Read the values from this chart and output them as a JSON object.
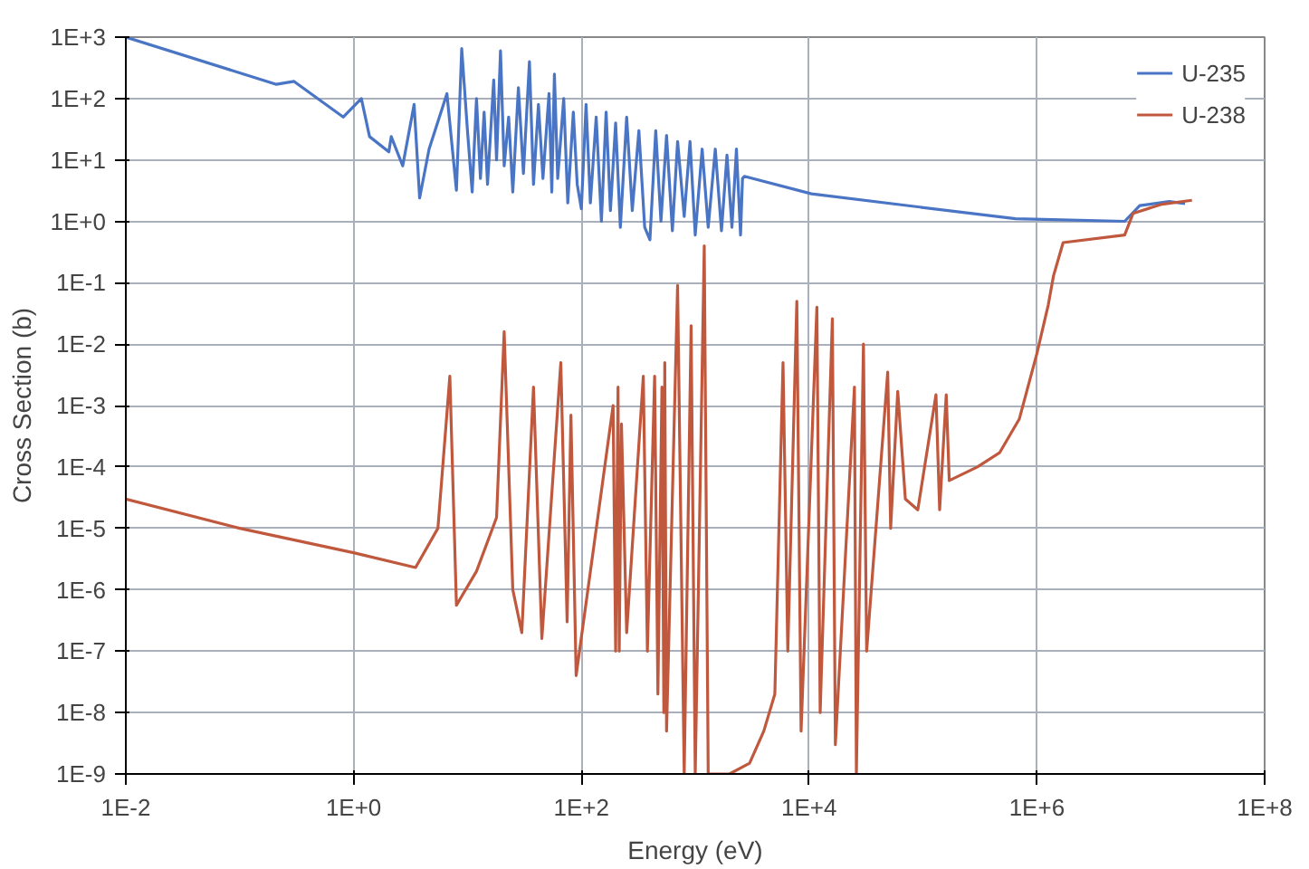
{
  "chart_data": {
    "type": "line",
    "xlabel": "Energy (eV)",
    "ylabel": "Cross Section (b)",
    "log": "xy",
    "grid": true,
    "legend": "top right",
    "xlim": [
      0.01,
      100000000
    ],
    "ylim": [
      1e-09,
      1000
    ],
    "xticks": [
      {
        "value": 0.01,
        "label": "1E-2"
      },
      {
        "value": 1,
        "label": "1E+0"
      },
      {
        "value": 100,
        "label": "1E+2"
      },
      {
        "value": 10000,
        "label": "1E+4"
      },
      {
        "value": 1000000,
        "label": "1E+6"
      },
      {
        "value": 100000000,
        "label": "1E+8"
      }
    ],
    "yticks": [
      {
        "value": 1000,
        "label": "1E+3"
      },
      {
        "value": 100,
        "label": "1E+2"
      },
      {
        "value": 10,
        "label": "1E+1"
      },
      {
        "value": 1,
        "label": "1E+0"
      },
      {
        "value": 0.1,
        "label": "1E-1"
      },
      {
        "value": 0.01,
        "label": "1E-2"
      },
      {
        "value": 0.001,
        "label": "1E-3"
      },
      {
        "value": 0.0001,
        "label": "1E-4"
      },
      {
        "value": 1e-05,
        "label": "1E-5"
      },
      {
        "value": 1e-06,
        "label": "1E-6"
      },
      {
        "value": 1e-07,
        "label": "1E-7"
      },
      {
        "value": 1e-08,
        "label": "1E-8"
      },
      {
        "value": 1e-09,
        "label": "1E-9"
      }
    ],
    "series": [
      {
        "name": "U-235",
        "color": "#4a74c4",
        "x": [
          0.01,
          0.21,
          0.3,
          0.81,
          1.17,
          1.38,
          2.04,
          2.14,
          2.7,
          3.4,
          3.8,
          4.6,
          6.6,
          8,
          8.9,
          10,
          11,
          12,
          13,
          14,
          15,
          17,
          18,
          19.5,
          21,
          23,
          25,
          28,
          31,
          35,
          38,
          42,
          46,
          52,
          55,
          58,
          62,
          70,
          76,
          85,
          92,
          100,
          110,
          120,
          135,
          150,
          165,
          180,
          200,
          220,
          250,
          280,
          320,
          360,
          400,
          450,
          500,
          560,
          630,
          700,
          800,
          900,
          1000,
          1150,
          1300,
          1500,
          1700,
          1900,
          2100,
          2300,
          2500,
          2600,
          2700,
          10500,
          650000,
          5900000,
          8000000,
          14500000,
          20000000
        ],
        "values": [
          1000,
          170,
          190,
          50,
          100,
          24,
          13.5,
          24,
          8,
          80,
          2.4,
          15,
          120,
          3.2,
          650,
          30,
          3,
          100,
          5,
          60,
          4,
          200,
          10,
          600,
          8,
          50,
          3,
          150,
          6,
          400,
          4,
          80,
          5,
          120,
          3,
          250,
          5,
          100,
          2,
          60,
          4,
          1.6,
          80,
          2,
          50,
          1,
          60,
          1.5,
          40,
          0.8,
          50,
          1.5,
          30,
          0.8,
          0.5,
          30,
          1,
          25,
          0.7,
          20,
          1.2,
          20,
          0.6,
          15,
          0.8,
          15,
          0.7,
          12,
          0.8,
          15,
          0.6,
          5,
          5.4,
          2.8,
          1.1,
          1,
          1.8,
          2.1,
          1.95
        ]
      },
      {
        "name": "U-238",
        "color": "#c0583e",
        "x": [
          0.01,
          0.1,
          1,
          3.5,
          5.5,
          7,
          8,
          12,
          18,
          21,
          25,
          30,
          38,
          45,
          66,
          75,
          81,
          90,
          190,
          200,
          210,
          215,
          225,
          250,
          350,
          380,
          440,
          470,
          510,
          530,
          540,
          560,
          700,
          800,
          920,
          1000,
          1200,
          1300,
          2000,
          3000,
          4000,
          5000,
          5900,
          6500,
          7800,
          8500,
          11700,
          12500,
          16000,
          17000,
          25000,
          26000,
          30000,
          32000,
          49000,
          52000,
          60000,
          70000,
          90000,
          130000,
          140000,
          160000,
          170000,
          300000,
          470000,
          700000,
          1000000,
          1260000,
          1400000,
          1700000,
          5900000,
          7000000,
          12600000,
          23000000
        ],
        "values": [
          3e-05,
          1e-05,
          4e-06,
          2.3e-06,
          1e-05,
          0.003,
          5.6e-07,
          2e-06,
          1.5e-05,
          0.016,
          1e-06,
          2e-07,
          0.002,
          1.6e-07,
          0.005,
          3e-07,
          0.0007,
          4e-08,
          0.001,
          1e-07,
          0.002,
          1e-07,
          0.0005,
          2e-07,
          0.003,
          1e-07,
          0.003,
          2e-08,
          0.002,
          1e-08,
          0.005,
          5e-09,
          0.09,
          1e-09,
          0.02,
          1e-09,
          0.4,
          1e-09,
          1e-09,
          1.5e-09,
          5e-09,
          2e-08,
          0.005,
          1e-07,
          0.05,
          5e-09,
          0.04,
          1e-08,
          0.026,
          3e-09,
          0.002,
          1e-09,
          0.01,
          1e-07,
          0.0035,
          1e-05,
          0.0017,
          3e-05,
          2e-05,
          0.0015,
          2e-05,
          0.0015,
          6e-05,
          0.0001,
          0.00017,
          0.0006,
          0.007,
          0.044,
          0.13,
          0.45,
          0.6,
          1.35,
          1.9,
          2.2
        ]
      }
    ]
  }
}
